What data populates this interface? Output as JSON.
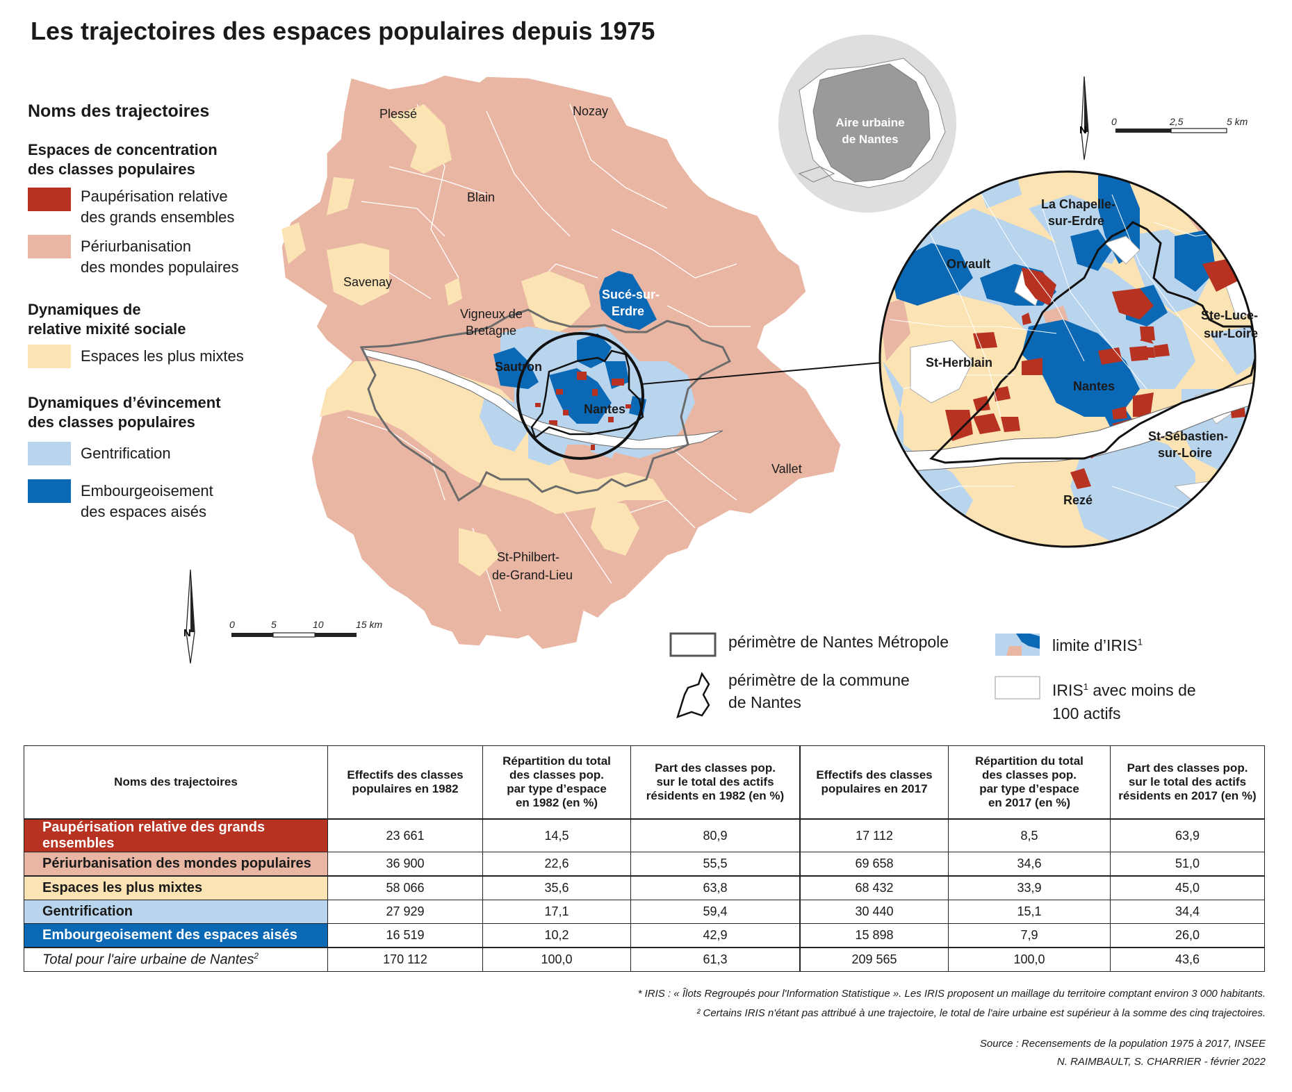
{
  "title": "Les trajectoires des espaces populaires depuis 1975",
  "colors": {
    "paupérisation": "#b83222",
    "periurbanisation": "#e9b6a4",
    "mixtes": "#fbe3b3",
    "gentrification": "#b9d5ee",
    "embourgeoisement": "#0a68b5",
    "boundary": "#666666"
  },
  "legend": {
    "heading": "Noms des trajectoires",
    "group1": "Espaces de concentration\ndes classes populaires",
    "item1": "Paupérisation relative\ndes grands ensembles",
    "item2": "Périurbanisation\ndes mondes populaires",
    "group2": "Dynamiques de\nrelative mixité sociale",
    "item3": "Espaces les plus mixtes",
    "group3": "Dynamiques d’évincement\ndes classes populaires",
    "item4": "Gentrification",
    "item5": "Embourgeoisement\ndes espaces aisés"
  },
  "places": {
    "plesse": "Plessé",
    "nozay": "Nozay",
    "blain": "Blain",
    "savenay": "Savenay",
    "vigneux1": "Vigneux de",
    "vigneux2": "Bretagne",
    "suce1": "Sucé-sur-",
    "suce2": "Erdre",
    "sautron": "Sautron",
    "nantes": "Nantes",
    "vallet": "Vallet",
    "stphilbert1": "St-Philbert-",
    "stphilbert2": "de-Grand-Lieu"
  },
  "inset": {
    "aire_line1": "Aire urbaine",
    "aire_line2": "de Nantes"
  },
  "zoom_places": {
    "chapelle1": "La Chapelle-",
    "chapelle2": "sur-Erdre",
    "orvault": "Orvault",
    "steluce1": "Ste-Luce-",
    "steluce2": "sur-Loire",
    "stherblain": "St-Herblain",
    "nantes": "Nantes",
    "stseb1": "St-Sébastien-",
    "stseb2": "sur-Loire",
    "reze": "Rezé"
  },
  "scale_main": {
    "t0": "0",
    "t1": "5",
    "t2": "10",
    "t3": "15 km"
  },
  "scale_zoom": {
    "t0": "0",
    "t1": "2,5",
    "t2": "5 km"
  },
  "north": "N",
  "map_legend": {
    "metropole": "périmètre de Nantes Métropole",
    "commune1": "périmètre de la commune",
    "commune2": "de Nantes",
    "iris_limit": "limite d’IRIS",
    "iris_small1": "IRIS",
    "iris_small2": " avec moins de",
    "iris_small3": "100 actifs",
    "sup": "1"
  },
  "table": {
    "headers": [
      "Noms des trajectoires",
      "Effectifs des classes\npopulaires en 1982",
      "Répartition du total\ndes classes pop.\npar type d’espace\nen 1982 (en %)",
      "Part des classes pop.\nsur le total des actifs\nrésidents en 1982 (en %)",
      "Effectifs des classes\npopulaires en 2017",
      "Répartition du total\ndes classes pop.\npar type d’espace\nen 2017 (en %)",
      "Part des classes pop.\nsur le total des actifs\nrésidents en 2017 (en %)"
    ],
    "rows": [
      {
        "name": "Paupérisation relative des grands ensembles",
        "bg": "#b83222",
        "fg": "#ffffff",
        "v": [
          "23 661",
          "14,5",
          "80,9",
          "17 112",
          "8,5",
          "63,9"
        ]
      },
      {
        "name": "Périurbanisation des mondes populaires",
        "bg": "#e9b6a4",
        "fg": "#1a1a1a",
        "v": [
          "36 900",
          "22,6",
          "55,5",
          "69 658",
          "34,6",
          "51,0"
        ]
      },
      {
        "name": "Espaces les plus mixtes",
        "bg": "#fbe3b3",
        "fg": "#1a1a1a",
        "v": [
          "58 066",
          "35,6",
          "63,8",
          "68 432",
          "33,9",
          "45,0"
        ]
      },
      {
        "name": "Gentrification",
        "bg": "#b9d5ee",
        "fg": "#1a1a1a",
        "v": [
          "27 929",
          "17,1",
          "59,4",
          "30 440",
          "15,1",
          "34,4"
        ]
      },
      {
        "name": "Embourgeoisement des espaces aisés",
        "bg": "#0a68b5",
        "fg": "#ffffff",
        "v": [
          "16 519",
          "10,2",
          "42,9",
          "15 898",
          "7,9",
          "26,0"
        ]
      }
    ],
    "total": {
      "name": "Total pour l'aire urbaine de Nantes",
      "sup": "2",
      "v": [
        "170 112",
        "100,0",
        "61,3",
        "209 565",
        "100,0",
        "43,6"
      ]
    }
  },
  "footnotes": {
    "n1": "* IRIS : « Îlots Regroupés pour l'Information Statistique ». Les IRIS proposent un maillage du territoire comptant environ 3 000 habitants.",
    "n2": "² Certains IRIS n'étant pas attribué à une trajectoire, le total de l'aire urbaine est supérieur à la somme des cinq trajectoires.",
    "source": "Source : Recensements de la population 1975 à 2017, INSEE",
    "authors": "N. RAIMBAULT, S. CHARRIER - février 2022"
  }
}
